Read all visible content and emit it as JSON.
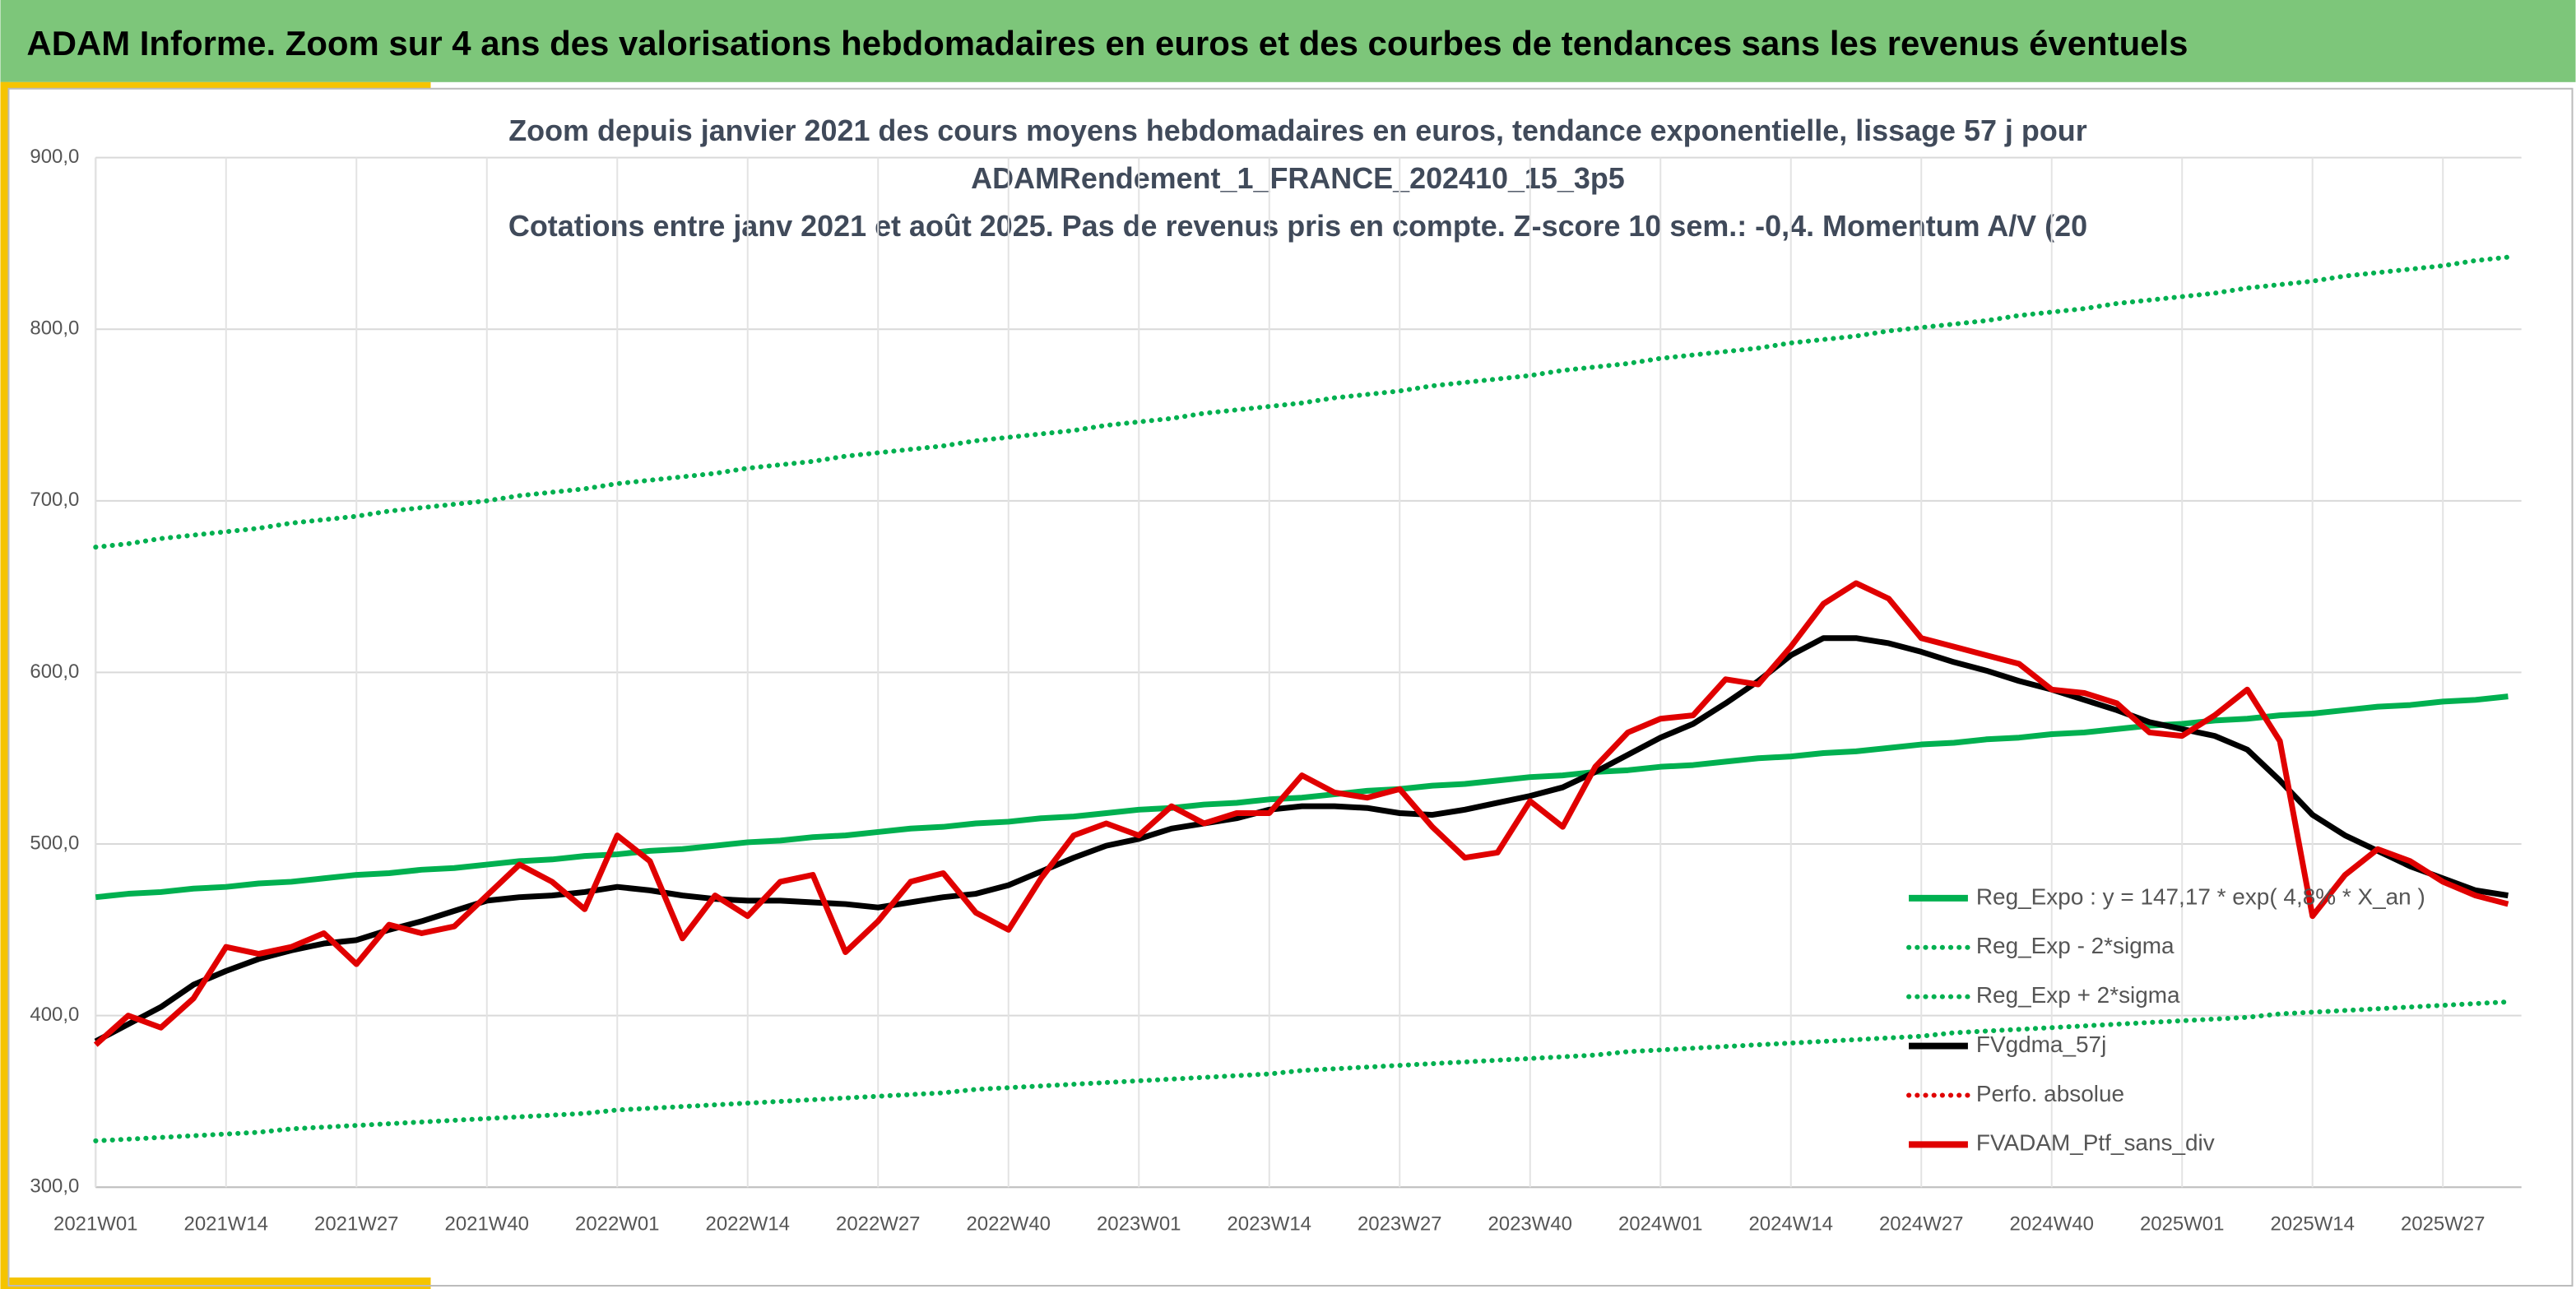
{
  "header": {
    "title": "ADAM Informe. Zoom sur 4 ans des valorisations hebdomadaires en euros et des courbes de tendances sans les revenus éventuels"
  },
  "chart_data": {
    "type": "line",
    "title": [
      "Zoom depuis janvier 2021 des cours moyens hebdomadaires en euros, tendance exponentielle, lissage 57 j pour",
      "ADAMRendement_1_FRANCE_202410_15_3p5",
      "Cotations entre janv 2021 et août 2025. Pas de revenus pris en compte. Z-score 10 sem.: -0,4. Momentum A/V (20"
    ],
    "categories": [
      "2021W01",
      null,
      null,
      null,
      "2021W14",
      null,
      null,
      null,
      "2021W27",
      null,
      null,
      null,
      "2021W40",
      null,
      null,
      null,
      "2022W01",
      null,
      null,
      null,
      "2022W14",
      null,
      null,
      null,
      "2022W27",
      null,
      null,
      null,
      "2022W40",
      null,
      null,
      null,
      "2023W01",
      null,
      null,
      null,
      "2023W14",
      null,
      null,
      null,
      "2023W27",
      null,
      null,
      null,
      "2023W40",
      null,
      null,
      null,
      "2024W01",
      null,
      null,
      null,
      "2024W14",
      null,
      null,
      null,
      "2024W27",
      null,
      null,
      null,
      "2024W40",
      null,
      null,
      null,
      "2025W01",
      null,
      null,
      null,
      "2025W14",
      null,
      null,
      null,
      "2025W27",
      null,
      null
    ],
    "ylim": [
      300,
      900
    ],
    "yticks": [
      {
        "value": 300,
        "label": "300,0"
      },
      {
        "value": 400,
        "label": "400,0"
      },
      {
        "value": 500,
        "label": "500,0"
      },
      {
        "value": 600,
        "label": "600,0"
      },
      {
        "value": 700,
        "label": "700,0"
      },
      {
        "value": 800,
        "label": "800,0"
      },
      {
        "value": 900,
        "label": "900,0"
      }
    ],
    "grid": true,
    "legend": "right",
    "series": [
      {
        "name": "Reg_Expo : y = 147,17 * exp( 4,8% *  X_an )",
        "color": "#00b050",
        "style": "solid",
        "values": [
          469,
          471,
          472,
          474,
          475,
          477,
          478,
          480,
          482,
          483,
          485,
          486,
          488,
          490,
          491,
          493,
          494,
          496,
          497,
          499,
          501,
          502,
          504,
          505,
          507,
          509,
          510,
          512,
          513,
          515,
          516,
          518,
          520,
          521,
          523,
          524,
          526,
          527,
          529,
          531,
          532,
          534,
          535,
          537,
          539,
          540,
          542,
          543,
          545,
          546,
          548,
          550,
          551,
          553,
          554,
          556,
          558,
          559,
          561,
          562,
          564,
          565,
          567,
          569,
          570,
          572,
          573,
          575,
          576,
          578,
          580,
          581,
          583,
          584,
          586
        ]
      },
      {
        "name": "Reg_Exp - 2*sigma",
        "color": "#00b050",
        "style": "dotted",
        "values": [
          327,
          328,
          329,
          330,
          331,
          332,
          334,
          335,
          336,
          337,
          338,
          339,
          340,
          341,
          342,
          343,
          345,
          346,
          347,
          348,
          349,
          350,
          351,
          352,
          353,
          354,
          355,
          357,
          358,
          359,
          360,
          361,
          362,
          363,
          364,
          365,
          366,
          368,
          369,
          370,
          371,
          372,
          373,
          374,
          375,
          376,
          377,
          379,
          380,
          381,
          382,
          383,
          384,
          385,
          386,
          387,
          388,
          390,
          391,
          392,
          393,
          394,
          395,
          396,
          397,
          398,
          399,
          401,
          402,
          403,
          404,
          405,
          406,
          407,
          408
        ]
      },
      {
        "name": "Reg_Exp + 2*sigma",
        "color": "#00b050",
        "style": "dotted",
        "values": [
          673,
          675,
          678,
          680,
          682,
          684,
          687,
          689,
          691,
          694,
          696,
          698,
          700,
          703,
          705,
          707,
          710,
          712,
          714,
          716,
          719,
          721,
          723,
          726,
          728,
          730,
          732,
          735,
          737,
          739,
          741,
          744,
          746,
          748,
          751,
          753,
          755,
          757,
          760,
          762,
          764,
          767,
          769,
          771,
          773,
          776,
          778,
          780,
          783,
          785,
          787,
          789,
          792,
          794,
          796,
          799,
          801,
          803,
          805,
          808,
          810,
          812,
          815,
          817,
          819,
          821,
          824,
          826,
          828,
          831,
          833,
          835,
          837,
          840,
          842
        ]
      },
      {
        "name": "FVgdma_57j",
        "color": "#000000",
        "style": "solid",
        "values": [
          385,
          395,
          405,
          418,
          426,
          433,
          438,
          442,
          444,
          450,
          455,
          461,
          467,
          469,
          470,
          472,
          475,
          473,
          470,
          468,
          467,
          467,
          466,
          465,
          463,
          466,
          469,
          471,
          476,
          484,
          492,
          499,
          503,
          509,
          512,
          515,
          520,
          522,
          522,
          521,
          518,
          517,
          520,
          524,
          528,
          533,
          542,
          552,
          562,
          570,
          582,
          595,
          610,
          620,
          620,
          617,
          612,
          606,
          601,
          595,
          590,
          584,
          578,
          571,
          567,
          563,
          555,
          537,
          517,
          505,
          496,
          487,
          480,
          473,
          470
        ]
      },
      {
        "name": "Perfo. absolue",
        "color": "#e00000",
        "style": "dotted"
      },
      {
        "name": "FVADAM_Ptf_sans_div",
        "color": "#e00000",
        "style": "solid",
        "values": [
          383,
          400,
          393,
          410,
          440,
          436,
          440,
          448,
          430,
          453,
          448,
          452,
          470,
          488,
          478,
          462,
          505,
          490,
          445,
          470,
          458,
          478,
          482,
          437,
          455,
          478,
          483,
          460,
          450,
          480,
          505,
          512,
          505,
          522,
          512,
          518,
          518,
          540,
          530,
          527,
          532,
          510,
          492,
          495,
          525,
          510,
          545,
          565,
          573,
          575,
          596,
          593,
          615,
          640,
          652,
          643,
          620,
          615,
          610,
          605,
          590,
          588,
          582,
          565,
          563,
          575,
          590,
          560,
          458,
          482,
          497,
          490,
          478,
          470,
          465
        ]
      }
    ]
  }
}
